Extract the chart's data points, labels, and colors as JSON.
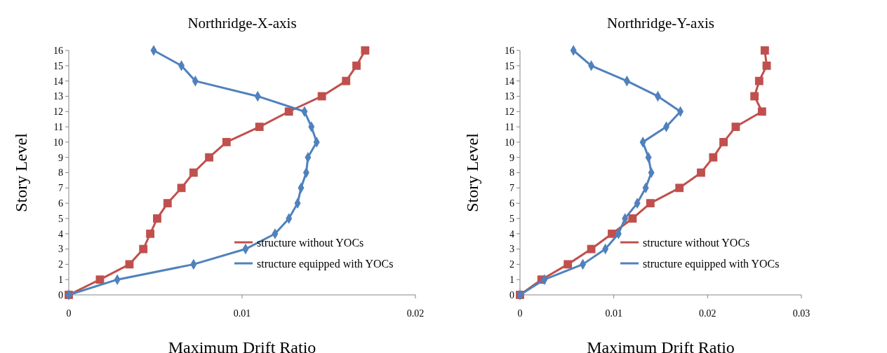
{
  "chart_data": [
    {
      "type": "line",
      "title": "Northridge-X-axis",
      "xlabel": "Maximum Drift Ratio",
      "ylabel": "Story Level",
      "xlim": [
        0,
        0.02
      ],
      "xticks": [
        0,
        0.01,
        0.02
      ],
      "ylim": [
        0,
        16
      ],
      "yticks": [
        0,
        1,
        2,
        3,
        4,
        5,
        6,
        7,
        8,
        9,
        10,
        11,
        12,
        13,
        14,
        15,
        16
      ],
      "grid": false,
      "legend": "bottom right",
      "series": [
        {
          "name": "structure without YOCs",
          "color": "#c0504d",
          "marker": "square",
          "x": [
            0,
            0.0018,
            0.0035,
            0.0043,
            0.0047,
            0.0051,
            0.0057,
            0.0065,
            0.0072,
            0.0081,
            0.0091,
            0.011,
            0.0127,
            0.0146,
            0.016,
            0.0166,
            0.0171
          ],
          "values": [
            0,
            1,
            2,
            3,
            4,
            5,
            6,
            7,
            8,
            9,
            10,
            11,
            12,
            13,
            14,
            15,
            16
          ]
        },
        {
          "name": "structure equipped with YOCs",
          "color": "#4f81bd",
          "marker": "diamond",
          "x": [
            0,
            0.0028,
            0.0072,
            0.0102,
            0.0119,
            0.0127,
            0.0132,
            0.0134,
            0.0137,
            0.0138,
            0.0143,
            0.014,
            0.0136,
            0.0109,
            0.0073,
            0.0065,
            0.0049
          ],
          "values": [
            0,
            1,
            2,
            3,
            4,
            5,
            6,
            7,
            8,
            9,
            10,
            11,
            12,
            13,
            14,
            15,
            16
          ]
        }
      ]
    },
    {
      "type": "line",
      "title": "Northridge-Y-axis",
      "xlabel": "Maximum Drift Ratio",
      "ylabel": "Story Level",
      "xlim": [
        0,
        0.03
      ],
      "xticks": [
        0,
        0.01,
        0.02,
        0.03
      ],
      "ylim": [
        0,
        16
      ],
      "yticks": [
        0,
        1,
        2,
        3,
        4,
        5,
        6,
        7,
        8,
        9,
        10,
        11,
        12,
        13,
        14,
        15,
        16
      ],
      "grid": false,
      "legend": "bottom right",
      "series": [
        {
          "name": "structure without YOCs",
          "color": "#c0504d",
          "marker": "square",
          "x": [
            0,
            0.0023,
            0.0051,
            0.0076,
            0.0098,
            0.012,
            0.0139,
            0.017,
            0.0193,
            0.0206,
            0.0217,
            0.023,
            0.0258,
            0.025,
            0.0255,
            0.0263,
            0.0261
          ],
          "values": [
            0,
            1,
            2,
            3,
            4,
            5,
            6,
            7,
            8,
            9,
            10,
            11,
            12,
            13,
            14,
            15,
            16
          ]
        },
        {
          "name": "structure equipped with YOCs",
          "color": "#4f81bd",
          "marker": "diamond",
          "x": [
            0,
            0.0026,
            0.0067,
            0.0091,
            0.0105,
            0.0112,
            0.0125,
            0.0134,
            0.014,
            0.0137,
            0.0131,
            0.0156,
            0.0171,
            0.0147,
            0.0114,
            0.0076,
            0.0057
          ],
          "values": [
            0,
            1,
            2,
            3,
            4,
            5,
            6,
            7,
            8,
            9,
            10,
            11,
            12,
            13,
            14,
            15,
            16
          ]
        }
      ]
    }
  ]
}
